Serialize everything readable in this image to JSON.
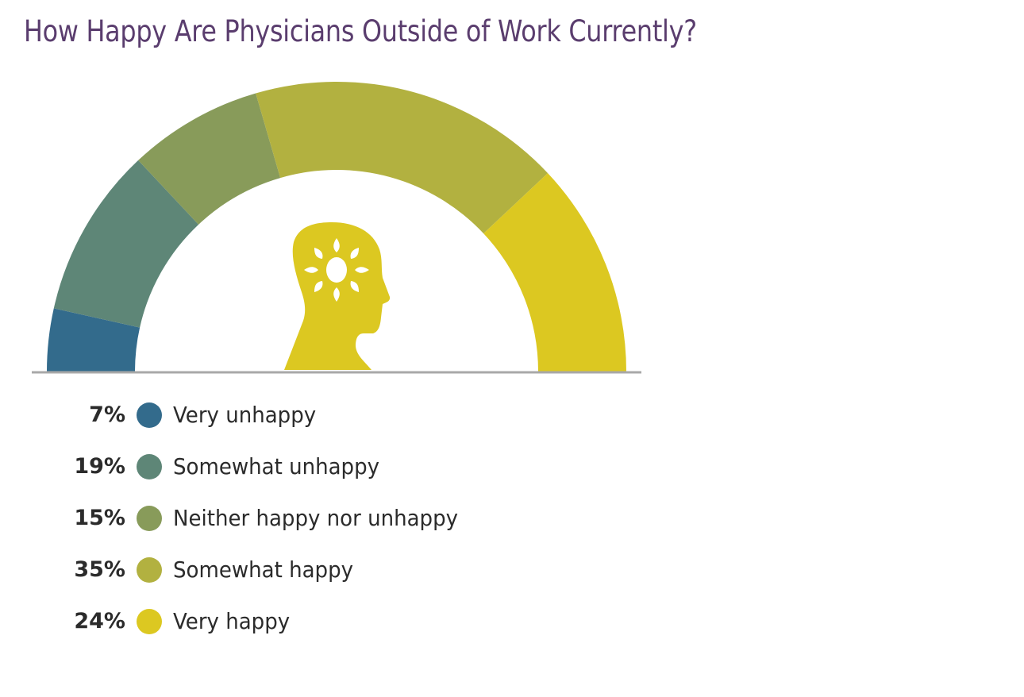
{
  "title": "How Happy Are Physicians Outside of Work Currently?",
  "icon": "head-with-sun-icon",
  "baseline_color": "#a8a8a8",
  "legend": [
    {
      "pct": "7%",
      "label": "Very unhappy",
      "color": "#336b8c"
    },
    {
      "pct": "19%",
      "label": "Somewhat unhappy",
      "color": "#5e8677"
    },
    {
      "pct": "15%",
      "label": "Neither happy nor unhappy",
      "color": "#889b5a"
    },
    {
      "pct": "35%",
      "label": "Somewhat happy",
      "color": "#b2b140"
    },
    {
      "pct": "24%",
      "label": "Very happy",
      "color": "#dcc821"
    }
  ],
  "chart_data": {
    "type": "pie",
    "subtype": "semicircle-donut",
    "title": "How Happy Are Physicians Outside of Work Currently?",
    "categories": [
      "Very unhappy",
      "Somewhat unhappy",
      "Neither happy nor unhappy",
      "Somewhat happy",
      "Very happy"
    ],
    "values": [
      7,
      19,
      15,
      35,
      24
    ],
    "unit": "%",
    "colors": [
      "#336b8c",
      "#5e8677",
      "#889b5a",
      "#b2b140",
      "#dcc821"
    ],
    "legend_position": "bottom-left"
  }
}
